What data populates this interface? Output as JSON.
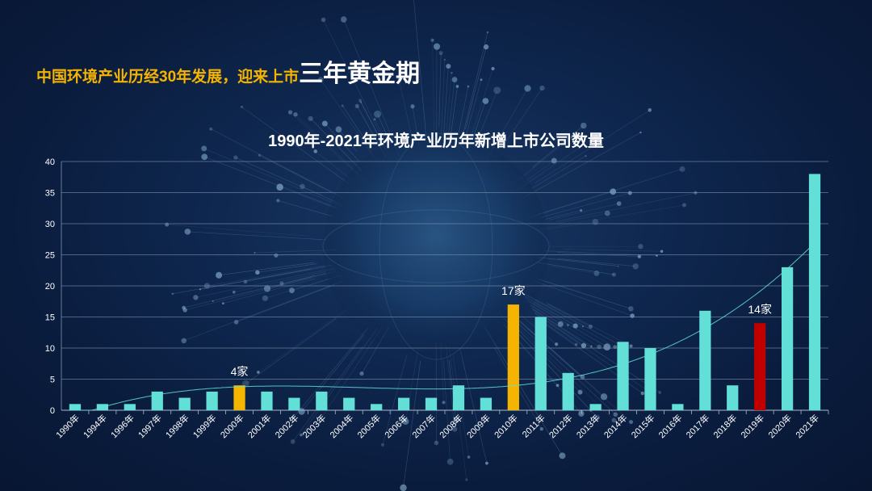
{
  "headline": {
    "part1": "中国环境产业历经30年发展，迎来上市",
    "part2": "三年黄金期"
  },
  "colors": {
    "bar": "#62e0d8",
    "highlight_yellow": "#f5b400",
    "highlight_red": "#c00000",
    "trend": "#62e0d8",
    "grid": "#7f93ad",
    "text": "#ffffff"
  },
  "chart_data": {
    "type": "bar",
    "title": "1990年-2021年环境产业历年新增上市公司数量",
    "xlabel": "",
    "ylabel": "",
    "ylim": [
      0,
      40
    ],
    "yticks": [
      0,
      5,
      10,
      15,
      20,
      25,
      30,
      35,
      40
    ],
    "grid": true,
    "categories": [
      "1990年",
      "1994年",
      "1996年",
      "1997年",
      "1998年",
      "1999年",
      "2000年",
      "2001年",
      "2002年",
      "2003年",
      "2004年",
      "2005年",
      "2006年",
      "2007年",
      "2008年",
      "2009年",
      "2010年",
      "2011年",
      "2012年",
      "2013年",
      "2014年",
      "2015年",
      "2016年",
      "2017年",
      "2018年",
      "2019年",
      "2020年",
      "2021年"
    ],
    "values": [
      1,
      1,
      1,
      3,
      2,
      3,
      4,
      3,
      2,
      3,
      2,
      1,
      2,
      2,
      4,
      2,
      17,
      15,
      6,
      1,
      11,
      10,
      1,
      16,
      4,
      14,
      23,
      38
    ],
    "highlights": [
      {
        "category": "2000年",
        "color": "#f5b400",
        "label": "4家"
      },
      {
        "category": "2010年",
        "color": "#f5b400",
        "label": "17家"
      },
      {
        "category": "2019年",
        "color": "#c00000",
        "label": "14家"
      }
    ],
    "trendline": {
      "type": "polynomial",
      "color": "#62e0d8"
    }
  }
}
